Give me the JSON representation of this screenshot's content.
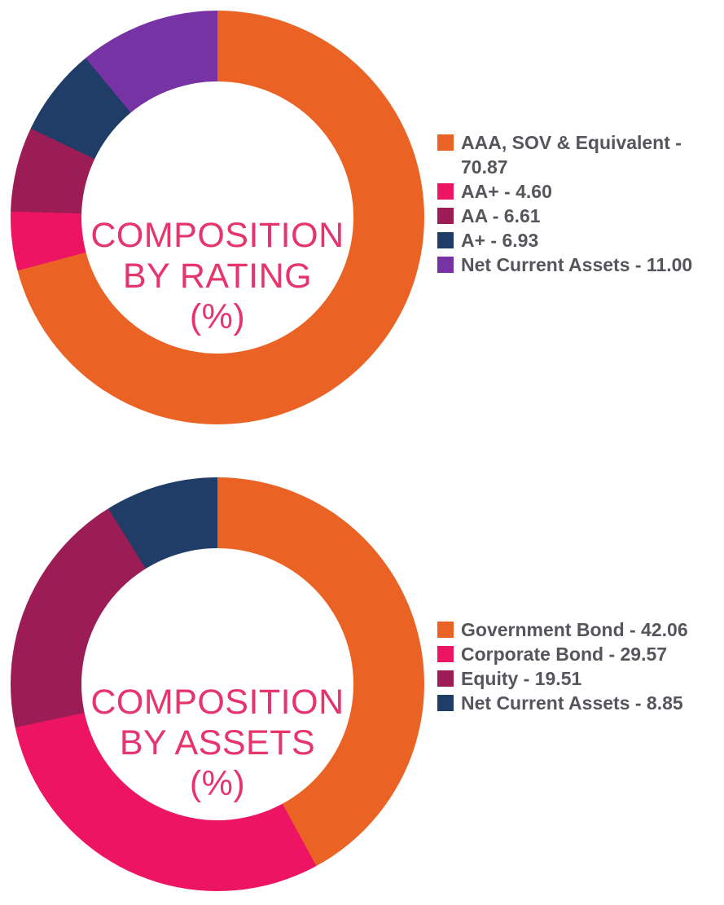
{
  "style": {
    "background": "#FFFFFF",
    "center_title_color": "#E6346C",
    "legend_text_color": "#54565B"
  },
  "chart_data": [
    {
      "type": "pie",
      "subtype": "donut",
      "title": "COMPOSITION BY RATING (%)",
      "center_title_lines": [
        "COMPOSITION",
        "BY RATING",
        "(%)"
      ],
      "labels": [
        "AAA, SOV & Equivalent",
        "AA+",
        "AA",
        "A+",
        "Net Current Assets"
      ],
      "values": [
        70.87,
        4.6,
        6.61,
        6.93,
        11.0
      ],
      "value_labels": [
        "70.87",
        "4.60",
        "6.61",
        "6.93",
        "11.00"
      ],
      "colors": [
        "#EB6324",
        "#EC1463",
        "#9C1C56",
        "#203D68",
        "#7733A3"
      ],
      "legend_position": "right",
      "legend_separator": " - ",
      "start_angle_deg": 0,
      "direction": "clockwise",
      "donut_hole_pct": 66
    },
    {
      "type": "pie",
      "subtype": "donut",
      "title": "COMPOSITION BY ASSETS (%)",
      "center_title_lines": [
        "COMPOSITION",
        "BY ASSETS",
        "(%)"
      ],
      "labels": [
        "Government Bond",
        "Corporate Bond",
        "Equity",
        "Net Current Assets"
      ],
      "values": [
        42.06,
        29.57,
        19.51,
        8.85
      ],
      "value_labels": [
        "42.06",
        "29.57",
        "19.51",
        "8.85"
      ],
      "colors": [
        "#EB6324",
        "#EC1463",
        "#9C1C56",
        "#203D68"
      ],
      "legend_position": "right",
      "legend_separator": " - ",
      "start_angle_deg": 0,
      "direction": "clockwise",
      "donut_hole_pct": 66
    }
  ]
}
